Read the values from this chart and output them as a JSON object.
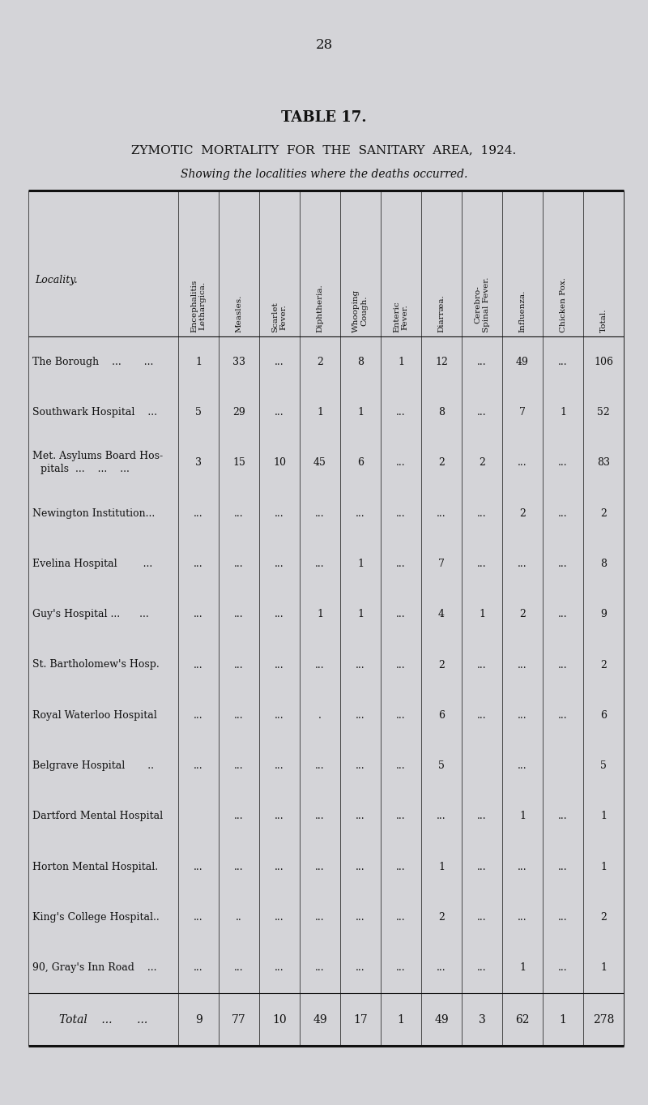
{
  "page_number": "28",
  "table_title": "TABLE 17.",
  "subtitle1": "ZYMOTIC  MORTALITY  FOR  THE  SANITARY  AREA,  1924.",
  "subtitle2": "Showing the localities where the deaths occurred.",
  "col_headers": [
    "Encephalitis\nLethargica.",
    "Measles.",
    "Scarlet\nFever.",
    "Diphtheria.",
    "Whooping\nCough.",
    "Enteric\nFever.",
    "Diarræa.",
    "Cerebro-\nSpinal Fever.",
    "Influenza.",
    "Chicken Pox.",
    "Total."
  ],
  "locality_header": "Locality.",
  "rows": [
    {
      "name_lines": [
        "The Borough    ...       ..."
      ],
      "values": [
        "1",
        "33",
        "...",
        "2",
        "8",
        "1",
        "12",
        "...",
        "49",
        "...",
        "106"
      ]
    },
    {
      "name_lines": [
        "Southwark Hospital    ..."
      ],
      "values": [
        "5",
        "29",
        "...",
        "1",
        "1",
        "...",
        "8",
        "...",
        "7",
        "1",
        "52"
      ]
    },
    {
      "name_lines": [
        "Met. Asylums Board Hos-",
        "  pitals  ...    ...    ..."
      ],
      "values": [
        "3",
        "15",
        "10",
        "45",
        "6",
        "...",
        "2",
        "2",
        "...",
        "...",
        "83"
      ]
    },
    {
      "name_lines": [
        "Newington Institution..."
      ],
      "values": [
        "...",
        "...",
        "...",
        "...",
        "...",
        "...",
        "...",
        "...",
        "2",
        "...",
        "2"
      ]
    },
    {
      "name_lines": [
        "Evelina Hospital        ..."
      ],
      "values": [
        "...",
        "...",
        "...",
        "...",
        "1",
        "...",
        "7",
        "...",
        "...",
        "...",
        "8"
      ]
    },
    {
      "name_lines": [
        "Guy's Hospital ...      ..."
      ],
      "values": [
        "...",
        "...",
        "...",
        "1",
        "1",
        "...",
        "4",
        "1",
        "2",
        "...",
        "9"
      ]
    },
    {
      "name_lines": [
        "St. Bartholomew's Hosp."
      ],
      "values": [
        "...",
        "...",
        "...",
        "...",
        "...",
        "...",
        "2",
        "...",
        "...",
        "...",
        "2"
      ]
    },
    {
      "name_lines": [
        "Royal Waterloo Hospital"
      ],
      "values": [
        "...",
        "...",
        "...",
        ".",
        "...",
        "...",
        "6",
        "...",
        "...",
        "...",
        "6"
      ]
    },
    {
      "name_lines": [
        "Belgrave Hospital       .."
      ],
      "values": [
        "...",
        "...",
        "...",
        "...",
        "...",
        "...",
        "5",
        "",
        "...",
        "",
        "5"
      ]
    },
    {
      "name_lines": [
        "Dartford Mental Hospital"
      ],
      "values": [
        "",
        "...",
        "...",
        "...",
        "...",
        "...",
        "...",
        "...",
        "1",
        "...",
        "1"
      ]
    },
    {
      "name_lines": [
        "Horton Mental Hospital."
      ],
      "values": [
        "...",
        "...",
        "...",
        "...",
        "...",
        "...",
        "1",
        "...",
        "...",
        "...",
        "1"
      ]
    },
    {
      "name_lines": [
        "King's College Hospital.."
      ],
      "values": [
        "...",
        "..",
        "...",
        "...",
        "...",
        "...",
        "2",
        "...",
        "...",
        "...",
        "2"
      ]
    },
    {
      "name_lines": [
        "90, Gray's Inn Road    ..."
      ],
      "values": [
        "...",
        "...",
        "...",
        "...",
        "...",
        "...",
        "...",
        "...",
        "1",
        "...",
        "1"
      ]
    }
  ],
  "total_row": {
    "name": "Total    ...       ...",
    "values": [
      "9",
      "77",
      "10",
      "49",
      "17",
      "1",
      "49",
      "3",
      "62",
      "1",
      "278"
    ]
  },
  "bg_color": "#d4d4d8",
  "text_color": "#111111",
  "font_family": "serif",
  "fig_width": 8.0,
  "fig_height": 13.63,
  "dpi": 100
}
